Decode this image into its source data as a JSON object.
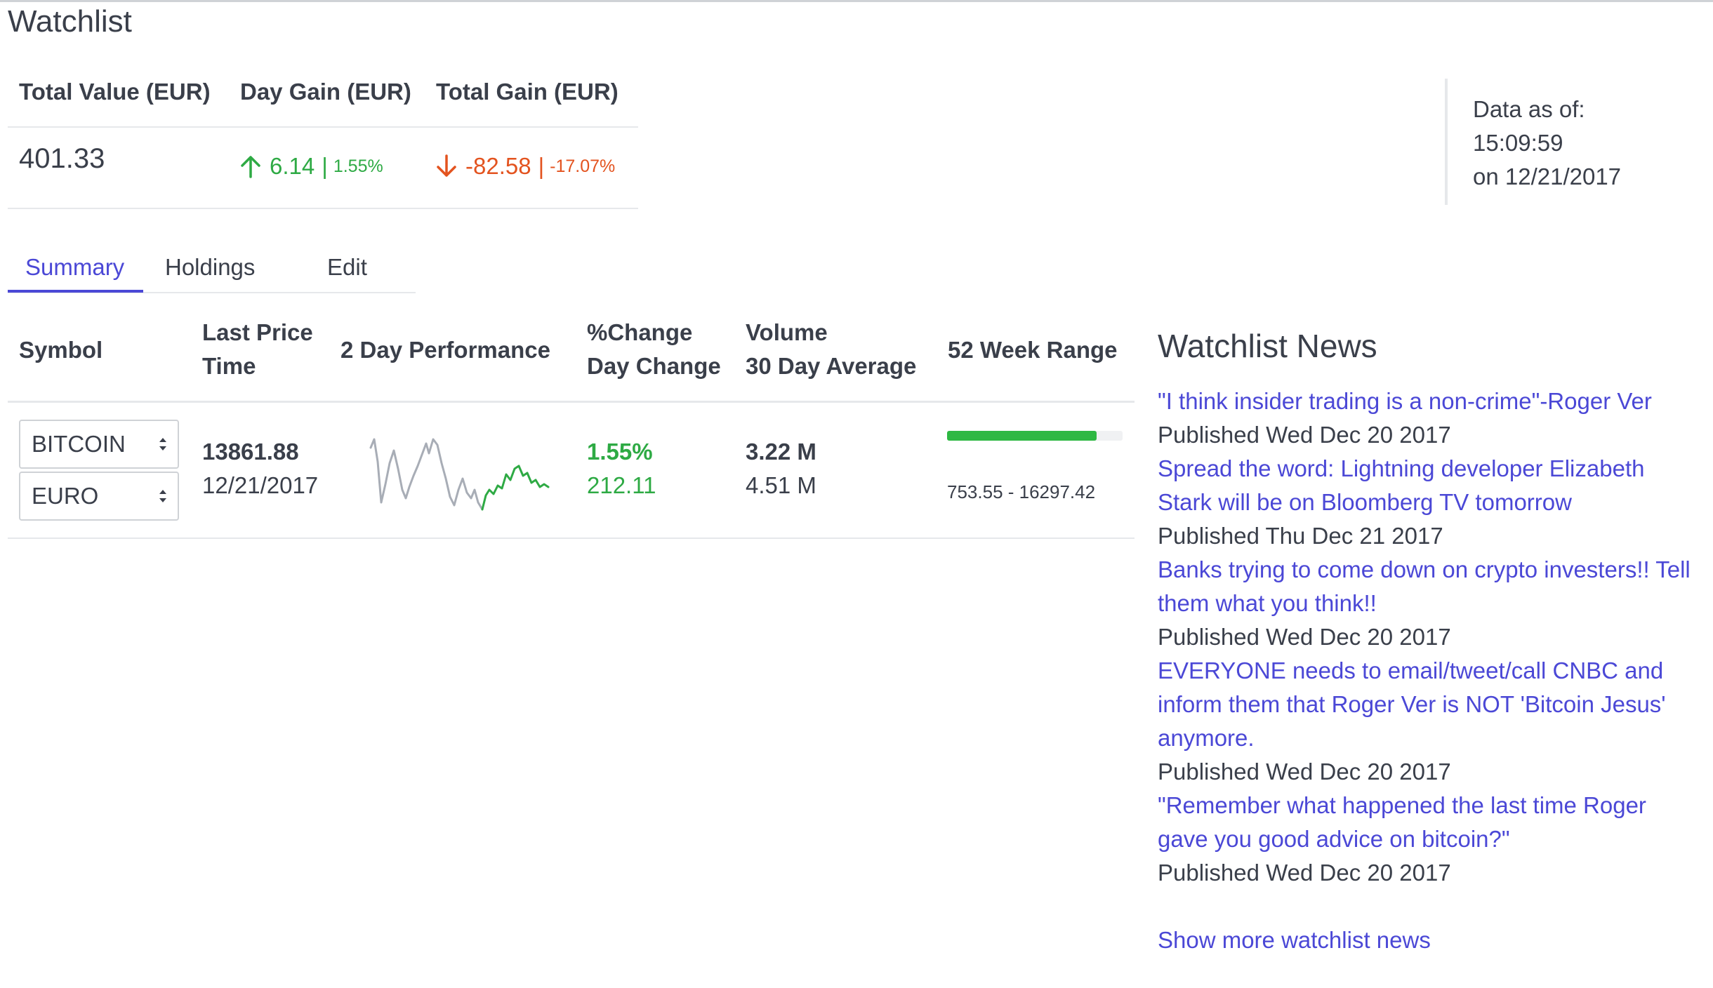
{
  "page": {
    "title": "Watchlist"
  },
  "stats": {
    "total_value_label": "Total Value (EUR)",
    "day_gain_label": "Day Gain (EUR)",
    "total_gain_label": "Total Gain (EUR)",
    "total_value": "401.33",
    "day_gain": "6.14",
    "day_gain_pct": "1.55%",
    "total_gain": "-82.58",
    "total_gain_pct": "-17.07%",
    "separator": "|"
  },
  "asof": {
    "line1": "Data as of:",
    "line2": "15:09:59",
    "line3": "on 12/21/2017"
  },
  "tabs": [
    {
      "label": "Summary",
      "active": true
    },
    {
      "label": "Holdings",
      "active": false
    },
    {
      "label": "Edit",
      "active": false
    }
  ],
  "table": {
    "headers": {
      "symbol": "Symbol",
      "last_price": "Last Price",
      "time": "Time",
      "performance": "2 Day Performance",
      "pct_change": "%Change",
      "day_change": "Day Change",
      "volume": "Volume",
      "avg_volume": "30 Day Average",
      "range": "52 Week Range"
    },
    "row": {
      "symbol_from": "BITCOIN",
      "symbol_to": "EURO",
      "last_price": "13861.88",
      "time": "12/21/2017",
      "pct_change": "1.55%",
      "day_change": "212.11",
      "volume": "3.22 M",
      "avg_volume": "4.51 M",
      "range_text": "753.55 - 16297.42",
      "range_low": 753.55,
      "range_high": 16297.42,
      "range_position_fraction": 0.85
    }
  },
  "colors": {
    "accent": "#4b48d6",
    "positive": "#2eaa44",
    "negative": "#e3531f",
    "spark_past": "#a8adb6",
    "spark_recent": "#2eaa44"
  },
  "news": {
    "title": "Watchlist News",
    "items": [
      {
        "headline": "\"I think insider trading is a non-crime\"-Roger Ver",
        "date": "Published Wed Dec 20 2017"
      },
      {
        "headline": "Spread the word: Lightning developer Elizabeth Stark will be on Bloomberg TV tomorrow",
        "date": "Published Thu Dec 21 2017"
      },
      {
        "headline": "Banks trying to come down on crypto investers!! Tell them what you think!!",
        "date": "Published Wed Dec 20 2017"
      },
      {
        "headline": "EVERYONE needs to email/tweet/call CNBC and inform them that Roger Ver is NOT 'Bitcoin Jesus' anymore.",
        "date": "Published Wed Dec 20 2017"
      },
      {
        "headline": "\"Remember what happened the last time Roger gave you good advice on bitcoin?\"",
        "date": "Published Wed Dec 20 2017"
      }
    ],
    "more_label": "Show more watchlist news"
  }
}
